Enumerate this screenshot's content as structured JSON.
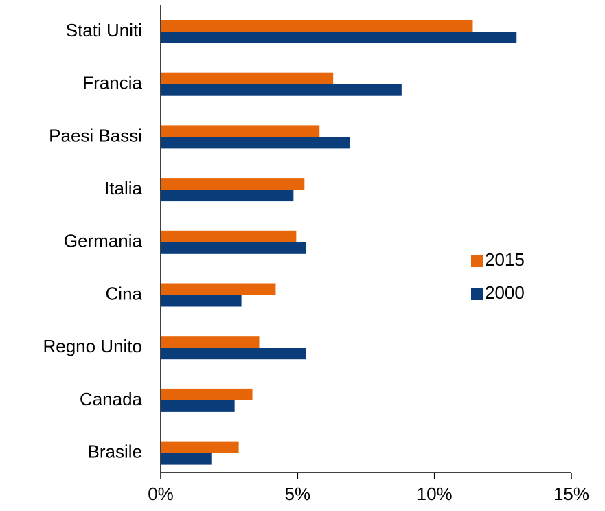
{
  "chart_data": {
    "type": "hbar",
    "categories": [
      "Stati Uniti",
      "Francia",
      "Paesi Bassi",
      "Italia",
      "Germania",
      "Cina",
      "Regno Unito",
      "Canada",
      "Brasile"
    ],
    "series": [
      {
        "name": "2015",
        "color": "#e8660a",
        "values": [
          11.4,
          6.3,
          5.8,
          5.25,
          4.95,
          4.2,
          3.6,
          3.35,
          2.85
        ]
      },
      {
        "name": "2000",
        "color": "#0a3d7a",
        "values": [
          13.0,
          8.8,
          6.9,
          4.85,
          5.3,
          2.95,
          5.3,
          2.7,
          1.85
        ]
      }
    ],
    "xlim": [
      0,
      15
    ],
    "xticks": [
      {
        "value": 0,
        "label": "0%"
      },
      {
        "value": 5,
        "label": "5%"
      },
      {
        "value": 10,
        "label": "10%"
      },
      {
        "value": 15,
        "label": "15%"
      }
    ],
    "legend": "right"
  }
}
